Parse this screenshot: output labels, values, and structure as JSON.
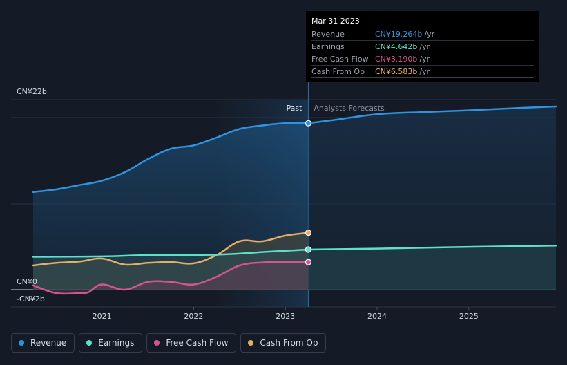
{
  "chart_data": {
    "type": "line",
    "x_ticks": [
      "2021",
      "2022",
      "2023",
      "2024",
      "2025"
    ],
    "y_labels": {
      "top": "CN¥22b",
      "zero": "CN¥0",
      "bottom": "-CN¥2b"
    },
    "y_range": [
      -2,
      22
    ],
    "past_label": "Past",
    "forecast_label": "Analysts Forecasts",
    "divider_x": 2023.25,
    "series": [
      {
        "name": "Revenue",
        "color": "#2f93e0",
        "points": [
          [
            2020.25,
            11.3
          ],
          [
            2020.5,
            11.6
          ],
          [
            2020.75,
            12.1
          ],
          [
            2021.0,
            12.6
          ],
          [
            2021.25,
            13.6
          ],
          [
            2021.5,
            15.1
          ],
          [
            2021.75,
            16.3
          ],
          [
            2022.0,
            16.7
          ],
          [
            2022.25,
            17.6
          ],
          [
            2022.5,
            18.6
          ],
          [
            2022.75,
            19.0
          ],
          [
            2023.0,
            19.26
          ],
          [
            2023.25,
            19.264
          ]
        ],
        "forecast": [
          [
            2023.25,
            19.264
          ],
          [
            2023.5,
            19.6
          ],
          [
            2024.0,
            20.3
          ],
          [
            2024.5,
            20.55
          ],
          [
            2025.0,
            20.75
          ],
          [
            2025.5,
            21.0
          ],
          [
            2025.95,
            21.2
          ]
        ]
      },
      {
        "name": "Earnings",
        "color": "#5fe0c9",
        "points": [
          [
            2020.25,
            3.8
          ],
          [
            2021.0,
            3.85
          ],
          [
            2021.5,
            4.0
          ],
          [
            2022.25,
            4.05
          ],
          [
            2022.75,
            4.35
          ],
          [
            2023.25,
            4.642
          ]
        ],
        "forecast": [
          [
            2023.25,
            4.642
          ],
          [
            2024.0,
            4.75
          ],
          [
            2025.0,
            4.95
          ],
          [
            2025.95,
            5.1
          ]
        ]
      },
      {
        "name": "Free Cash Flow",
        "color": "#d4558f",
        "points": [
          [
            2020.25,
            0.5
          ],
          [
            2020.5,
            -0.4
          ],
          [
            2020.75,
            -0.4
          ],
          [
            2020.85,
            -0.3
          ],
          [
            2021.0,
            0.6
          ],
          [
            2021.25,
            0.0
          ],
          [
            2021.5,
            0.9
          ],
          [
            2021.75,
            0.9
          ],
          [
            2022.0,
            0.6
          ],
          [
            2022.25,
            1.5
          ],
          [
            2022.5,
            2.8
          ],
          [
            2022.75,
            3.15
          ],
          [
            2023.0,
            3.2
          ],
          [
            2023.25,
            3.19
          ]
        ]
      },
      {
        "name": "Cash From Op",
        "color": "#e7ad66",
        "points": [
          [
            2020.25,
            2.8
          ],
          [
            2020.5,
            3.1
          ],
          [
            2020.75,
            3.25
          ],
          [
            2021.0,
            3.6
          ],
          [
            2021.25,
            2.9
          ],
          [
            2021.5,
            3.1
          ],
          [
            2021.75,
            3.2
          ],
          [
            2022.0,
            3.05
          ],
          [
            2022.25,
            4.0
          ],
          [
            2022.5,
            5.6
          ],
          [
            2022.75,
            5.6
          ],
          [
            2023.0,
            6.25
          ],
          [
            2023.25,
            6.583
          ]
        ]
      }
    ]
  },
  "tooltip": {
    "title": "Mar 31 2023",
    "rows": [
      {
        "label": "Revenue",
        "value": "CN¥19.264b",
        "unit": "/yr",
        "color": "#2f93e0"
      },
      {
        "label": "Earnings",
        "value": "CN¥4.642b",
        "unit": "/yr",
        "color": "#5fe0c9"
      },
      {
        "label": "Free Cash Flow",
        "value": "CN¥3.190b",
        "unit": "/yr",
        "color": "#d4558f"
      },
      {
        "label": "Cash From Op",
        "value": "CN¥6.583b",
        "unit": "/yr",
        "color": "#e7ad66"
      }
    ]
  },
  "legend": {
    "items": [
      {
        "label": "Revenue",
        "color": "#2f93e0"
      },
      {
        "label": "Earnings",
        "color": "#5fe0c9"
      },
      {
        "label": "Free Cash Flow",
        "color": "#d4558f"
      },
      {
        "label": "Cash From Op",
        "color": "#e7ad66"
      }
    ]
  }
}
